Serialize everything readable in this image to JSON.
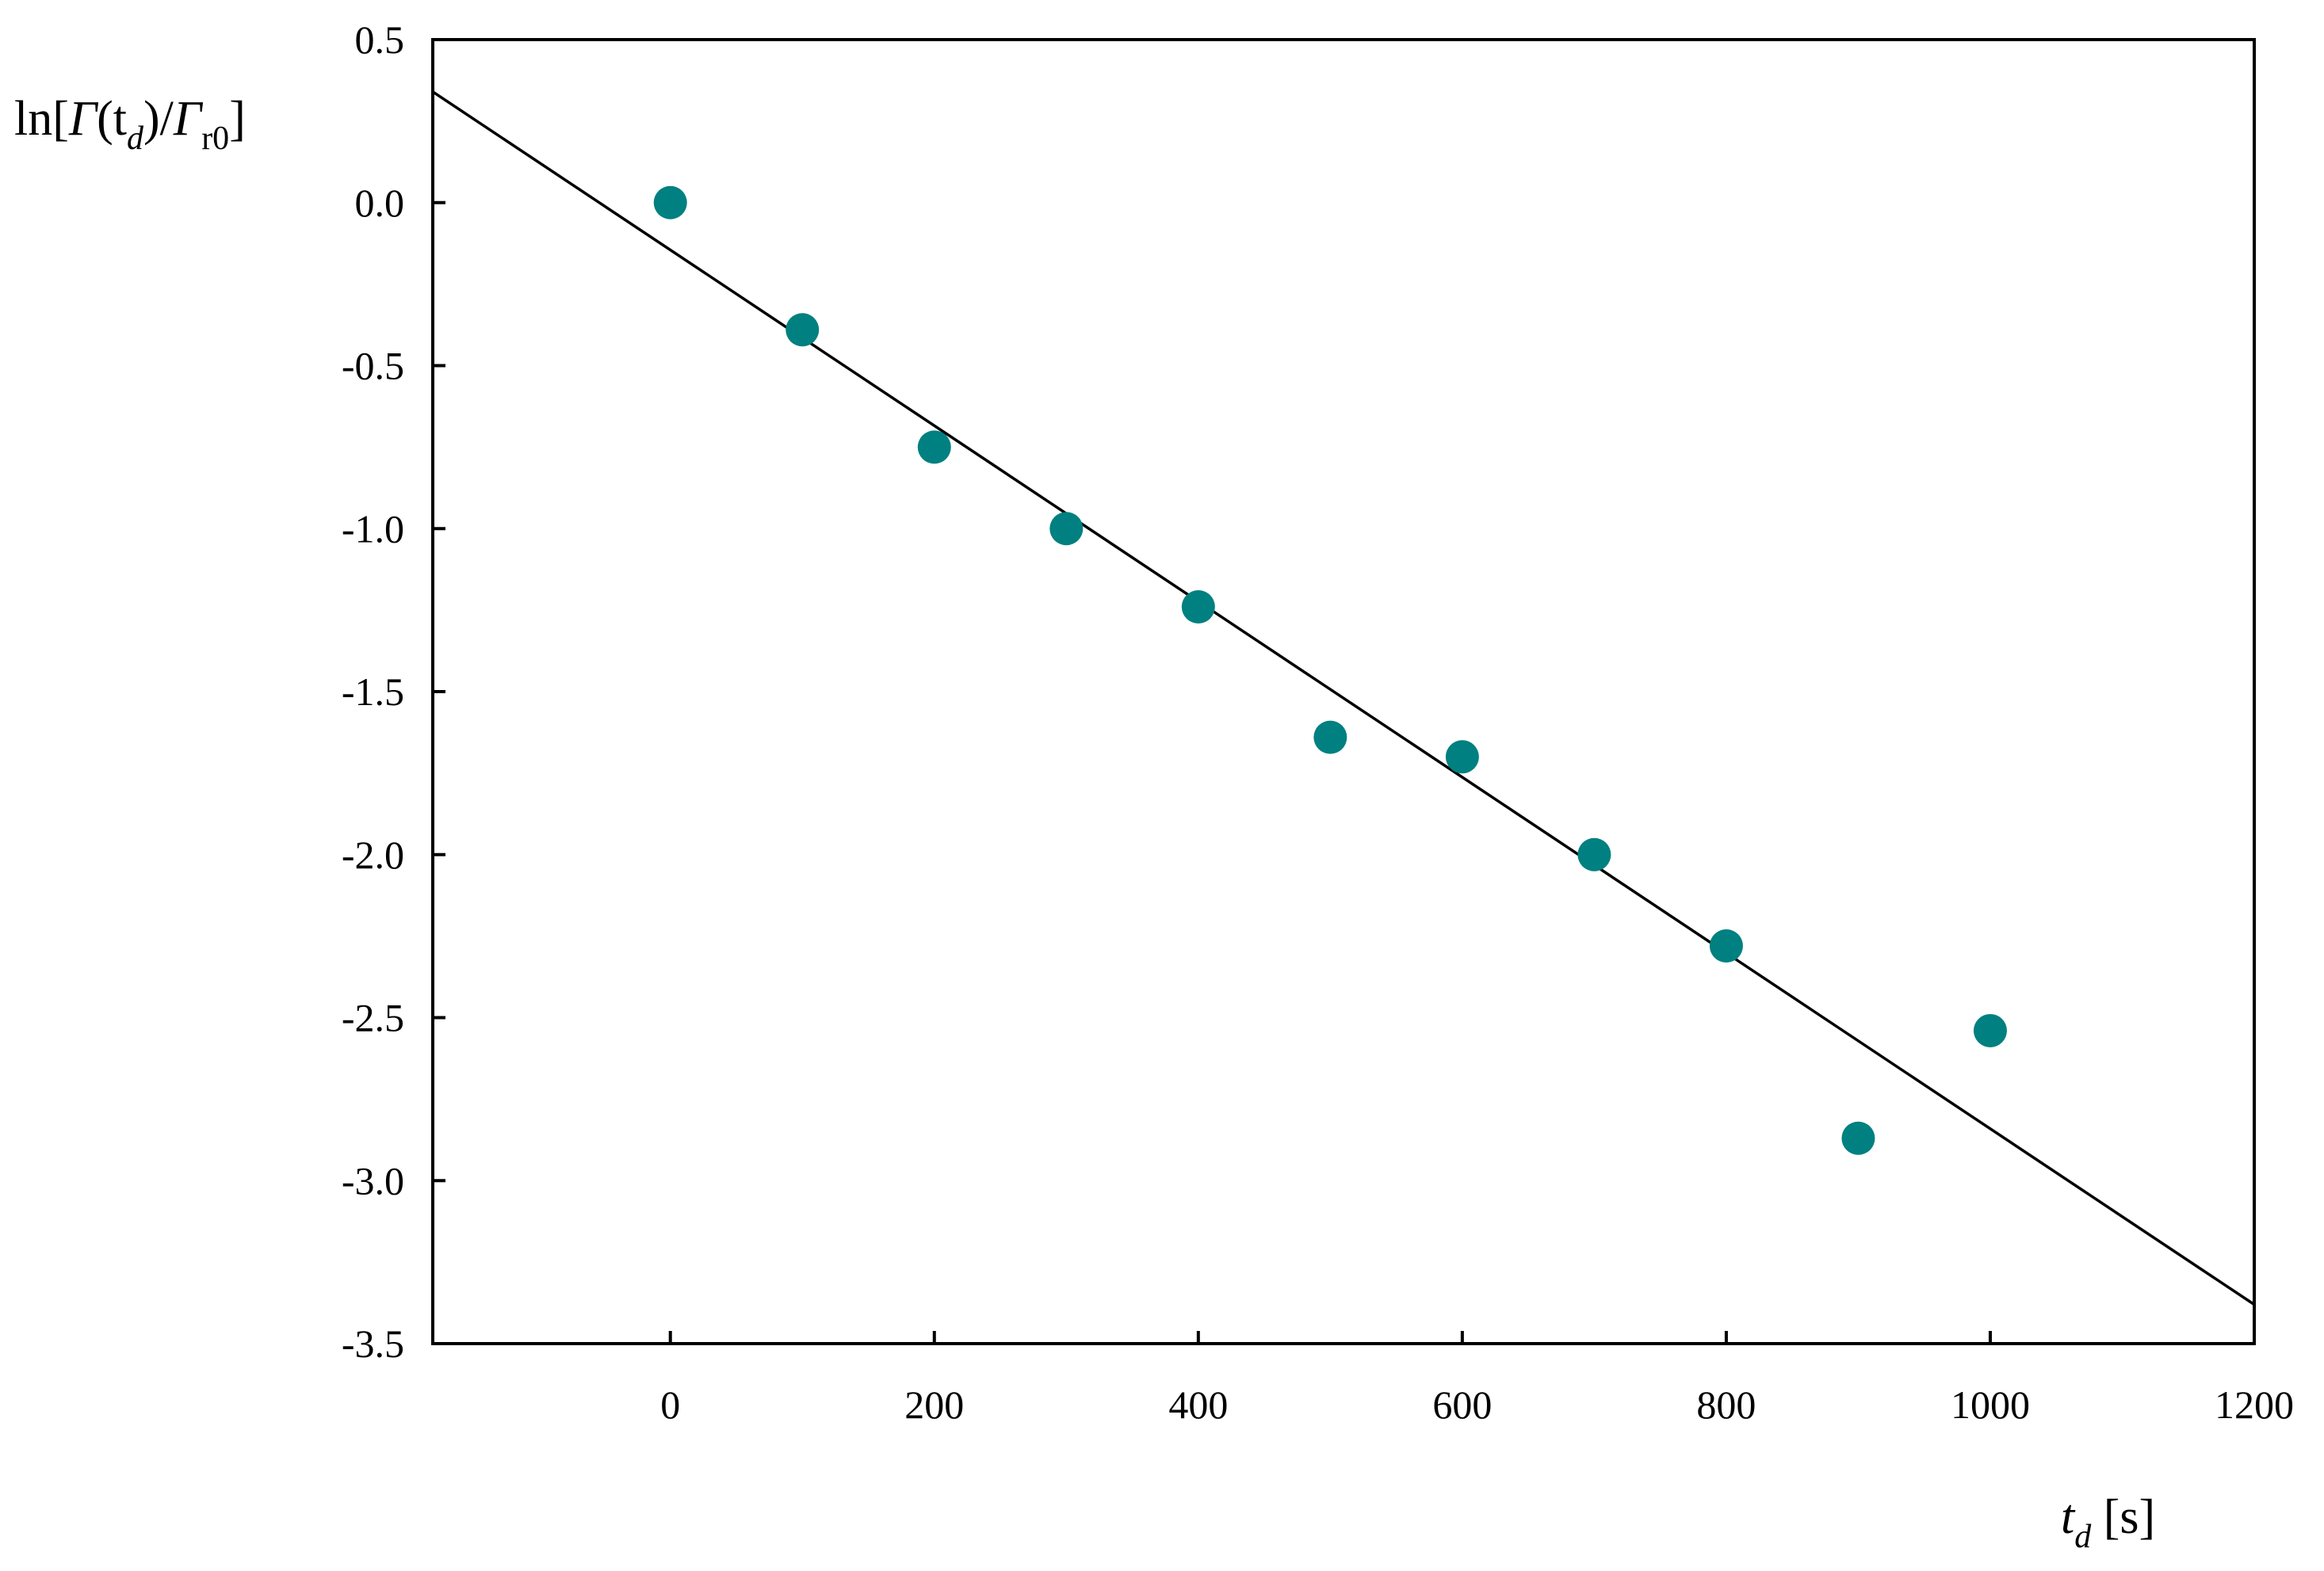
{
  "chart_data": {
    "type": "scatter",
    "xlim": [
      -180,
      1200
    ],
    "ylim": [
      -3.5,
      0.5
    ],
    "x_ticks": [
      0,
      200,
      400,
      600,
      800,
      1000,
      1200
    ],
    "x_tick_labels": [
      "0",
      "200",
      "400",
      "600",
      "800",
      "1000",
      "1200"
    ],
    "y_ticks": [
      0.5,
      0.0,
      -0.5,
      -1.0,
      -1.5,
      -2.0,
      -2.5,
      -3.0,
      -3.5
    ],
    "y_tick_labels": [
      "0.5",
      "0.0",
      "-0.5",
      "-1.0",
      "-1.5",
      "-2.0",
      "-2.5",
      "-3.0",
      "-3.5"
    ],
    "xlabel": {
      "main": "t",
      "sub": "d",
      "unit": " [s]"
    },
    "ylabel": {
      "prefix": "ln[",
      "gamma1": "Γ",
      "open": "(t",
      "sub1": "d",
      "close": ")/",
      "gamma2": "Γ",
      "sub2": "r0",
      "suffix": "]"
    },
    "grid": false,
    "legend": "none",
    "series": [
      {
        "x": [
          0,
          100,
          200,
          300,
          400,
          500,
          600,
          700,
          800,
          900,
          1000
        ],
        "y": [
          0.0,
          -0.39,
          -0.75,
          -1.0,
          -1.24,
          -1.64,
          -1.7,
          -2.0,
          -2.28,
          -2.87,
          -2.54
        ],
        "color": "#008080"
      }
    ],
    "fit_line": {
      "x": [
        -180,
        1200
      ],
      "y": [
        0.34,
        -3.38
      ],
      "color": "#000000"
    }
  }
}
